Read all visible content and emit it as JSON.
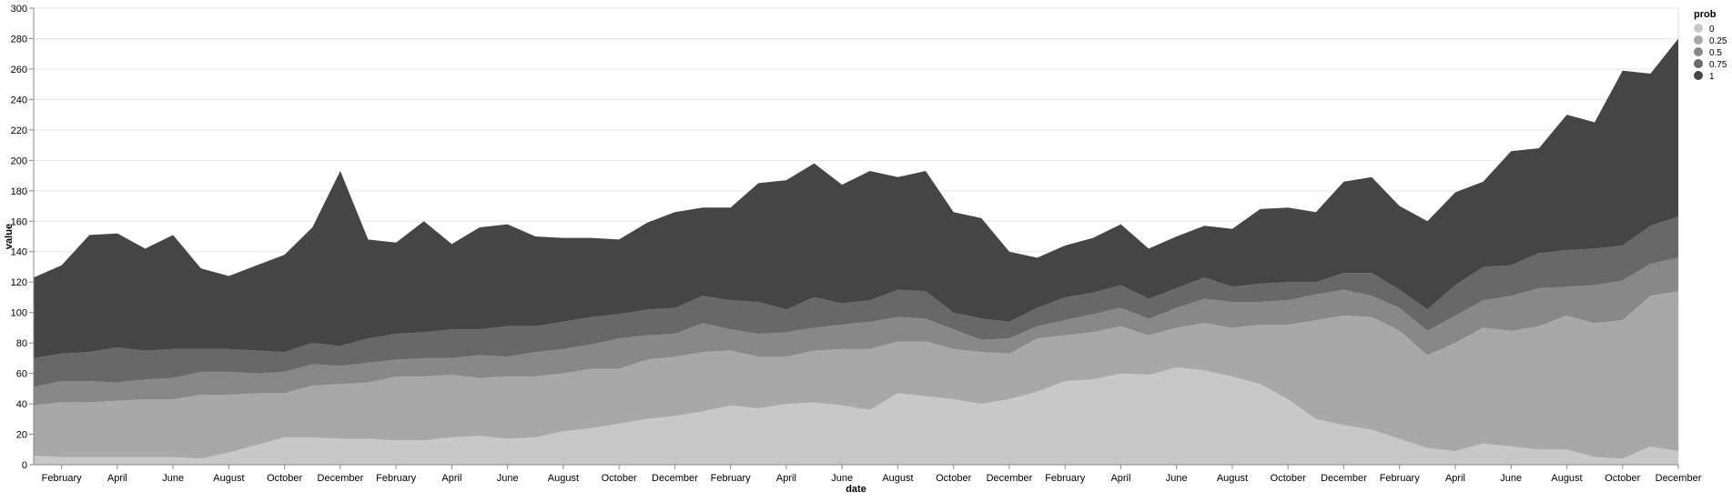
{
  "chart_data": {
    "type": "area",
    "stacked": true,
    "xlabel": "date",
    "ylabel": "value",
    "ylim": [
      0,
      300
    ],
    "y_ticks": [
      0,
      20,
      40,
      60,
      80,
      100,
      120,
      140,
      160,
      180,
      200,
      220,
      240,
      260,
      280,
      300
    ],
    "x_ticks": [
      "February",
      "April",
      "June",
      "August",
      "October",
      "December",
      "February",
      "April",
      "June",
      "August",
      "October",
      "December",
      "February",
      "April",
      "June",
      "August",
      "October",
      "December",
      "February",
      "April",
      "June",
      "August",
      "October",
      "December",
      "February",
      "April",
      "June",
      "August",
      "October",
      "December"
    ],
    "x": [
      "2000-01",
      "2000-02",
      "2000-03",
      "2000-04",
      "2000-05",
      "2000-06",
      "2000-07",
      "2000-08",
      "2000-09",
      "2000-10",
      "2000-11",
      "2000-12",
      "2001-01",
      "2001-02",
      "2001-03",
      "2001-04",
      "2001-05",
      "2001-06",
      "2001-07",
      "2001-08",
      "2001-09",
      "2001-10",
      "2001-11",
      "2001-12",
      "2002-01",
      "2002-02",
      "2002-03",
      "2002-04",
      "2002-05",
      "2002-06",
      "2002-07",
      "2002-08",
      "2002-09",
      "2002-10",
      "2002-11",
      "2002-12",
      "2003-01",
      "2003-02",
      "2003-03",
      "2003-04",
      "2003-05",
      "2003-06",
      "2003-07",
      "2003-08",
      "2003-09",
      "2003-10",
      "2003-11",
      "2003-12",
      "2004-01",
      "2004-02",
      "2004-03",
      "2004-04",
      "2004-05",
      "2004-06",
      "2004-07",
      "2004-08",
      "2004-09",
      "2004-10",
      "2004-11",
      "2004-12"
    ],
    "legend": {
      "title": "prob",
      "position": "top-right",
      "entries": [
        "0",
        "0.25",
        "0.5",
        "0.75",
        "1"
      ]
    },
    "series": [
      {
        "name": "0",
        "color": "#c8c8c8",
        "values": [
          6,
          5,
          5,
          5,
          5,
          5,
          4,
          8,
          13,
          18,
          18,
          17,
          17,
          16,
          16,
          18,
          19,
          17,
          18,
          22,
          24,
          27,
          30,
          32,
          35,
          39,
          37,
          40,
          41,
          39,
          36,
          47,
          45,
          43,
          40,
          43,
          48,
          55,
          56,
          60,
          59,
          64,
          62,
          58,
          53,
          43,
          30,
          26,
          23,
          17,
          11,
          9,
          14,
          12,
          10,
          10,
          5,
          4,
          12,
          9
        ]
      },
      {
        "name": "0.25",
        "color": "#a8a8a8",
        "values": [
          33,
          36,
          36,
          37,
          38,
          38,
          42,
          38,
          34,
          29,
          34,
          36,
          37,
          42,
          42,
          41,
          38,
          41,
          40,
          38,
          39,
          36,
          39,
          39,
          39,
          36,
          34,
          31,
          34,
          37,
          40,
          34,
          36,
          33,
          34,
          30,
          35,
          30,
          31,
          31,
          26,
          26,
          31,
          32,
          39,
          49,
          65,
          72,
          74,
          71,
          61,
          71,
          76,
          76,
          81,
          88,
          88,
          91,
          99,
          105
        ]
      },
      {
        "name": "0.5",
        "color": "#888888",
        "values": [
          12,
          14,
          14,
          12,
          13,
          14,
          15,
          15,
          13,
          14,
          14,
          12,
          13,
          11,
          12,
          11,
          15,
          13,
          16,
          16,
          16,
          20,
          16,
          15,
          19,
          14,
          15,
          16,
          15,
          16,
          18,
          16,
          15,
          13,
          8,
          10,
          8,
          10,
          12,
          12,
          11,
          13,
          16,
          17,
          15,
          16,
          17,
          17,
          14,
          15,
          16,
          18,
          18,
          23,
          25,
          19,
          25,
          26,
          21,
          22
        ]
      },
      {
        "name": "0.75",
        "color": "#686868",
        "values": [
          19,
          18,
          19,
          23,
          19,
          19,
          15,
          15,
          15,
          13,
          14,
          13,
          16,
          17,
          17,
          19,
          17,
          20,
          17,
          18,
          18,
          16,
          17,
          17,
          18,
          19,
          21,
          15,
          20,
          14,
          14,
          18,
          18,
          11,
          14,
          11,
          12,
          15,
          14,
          15,
          13,
          13,
          14,
          10,
          12,
          12,
          8,
          11,
          15,
          12,
          14,
          20,
          22,
          20,
          23,
          24,
          24,
          23,
          25,
          27
        ]
      },
      {
        "name": "1",
        "color": "#454545",
        "values": [
          53,
          58,
          77,
          75,
          67,
          75,
          53,
          48,
          56,
          64,
          76,
          115,
          65,
          60,
          73,
          56,
          67,
          67,
          59,
          55,
          52,
          49,
          57,
          63,
          58,
          61,
          78,
          85,
          88,
          78,
          85,
          74,
          79,
          66,
          66,
          46,
          33,
          34,
          36,
          40,
          33,
          34,
          34,
          38,
          49,
          49,
          46,
          60,
          63,
          55,
          58,
          61,
          56,
          75,
          69,
          89,
          83,
          115,
          100,
          117
        ]
      }
    ]
  }
}
